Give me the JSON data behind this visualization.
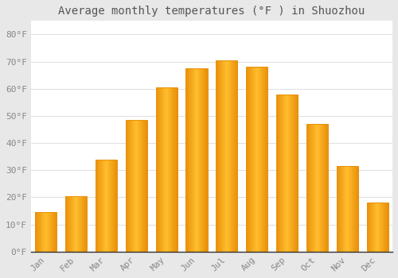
{
  "title": "Average monthly temperatures (°F ) in Shuozhou",
  "months": [
    "Jan",
    "Feb",
    "Mar",
    "Apr",
    "May",
    "Jun",
    "Jul",
    "Aug",
    "Sep",
    "Oct",
    "Nov",
    "Dec"
  ],
  "values": [
    14.5,
    20.5,
    34.0,
    48.5,
    60.5,
    67.5,
    70.5,
    68.0,
    58.0,
    47.0,
    31.5,
    18.0
  ],
  "bar_color_center": "#FFBE2D",
  "bar_color_edge": "#E8900A",
  "ylim": [
    0,
    85
  ],
  "yticks": [
    0,
    10,
    20,
    30,
    40,
    50,
    60,
    70,
    80
  ],
  "ytick_labels": [
    "0°F",
    "10°F",
    "20°F",
    "30°F",
    "40°F",
    "50°F",
    "60°F",
    "70°F",
    "80°F"
  ],
  "plot_bg_color": "#ffffff",
  "fig_bg_color": "#e8e8e8",
  "grid_color": "#e0e0e0",
  "title_fontsize": 10,
  "tick_fontsize": 8,
  "title_color": "#555555",
  "tick_color": "#888888",
  "spine_color": "#333333"
}
